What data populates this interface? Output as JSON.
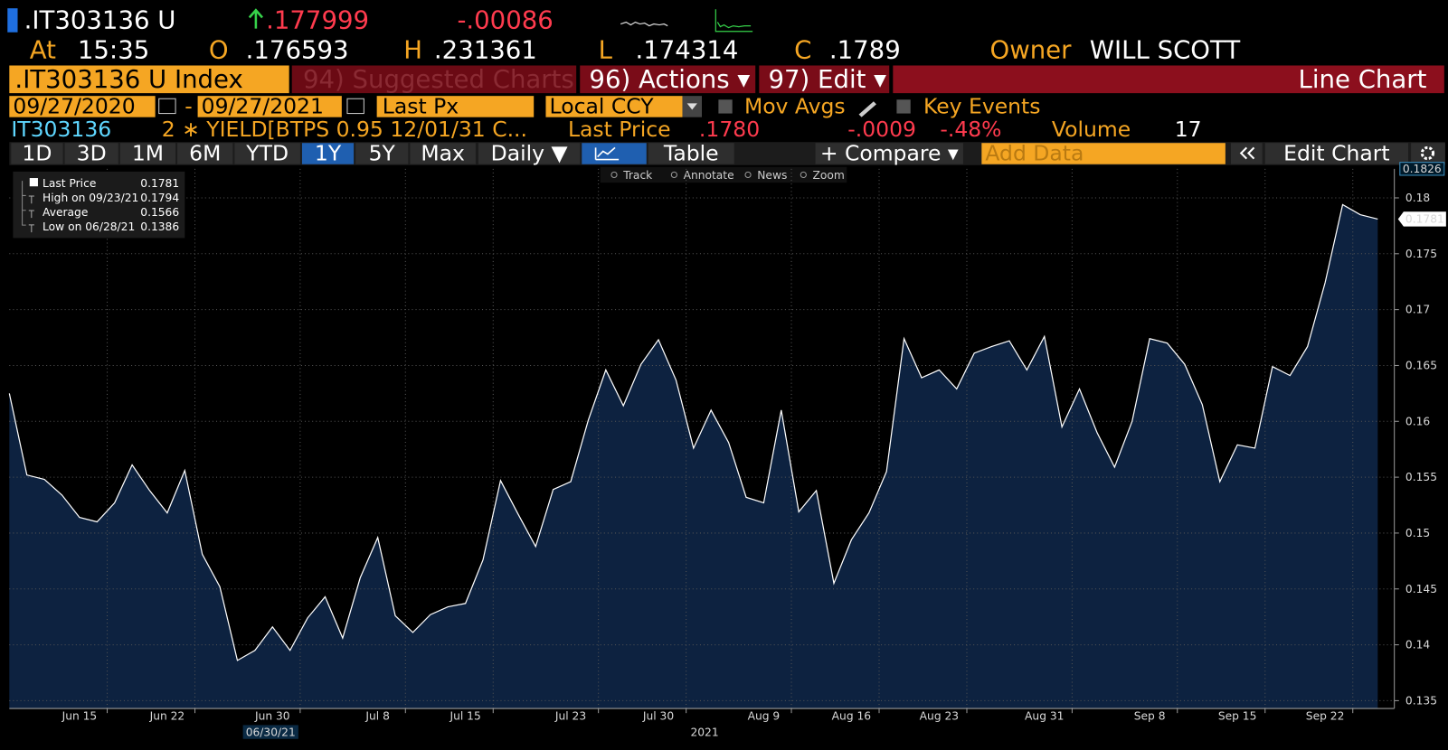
{
  "header": {
    "ticker": ".IT303136 U",
    "last": ".177999",
    "change": "-.00086",
    "at_label": "At",
    "time": "15:35",
    "open_label": "O",
    "open": ".176593",
    "high_label": "H",
    "high": ".231361",
    "low_label": "L",
    "low": ".174314",
    "close_label": "C",
    "close": ".1789",
    "owner_label": "Owner",
    "owner": "WILL SCOTT"
  },
  "menu": {
    "security": ".IT303136 U Index",
    "suggested": "94) Suggested Charts",
    "actions": "96) Actions ▾",
    "edit": "97) Edit ▾",
    "chart_type": "Line Chart"
  },
  "controls": {
    "start_date": "09/27/2020",
    "dash": "-",
    "end_date": "09/27/2021",
    "field": "Last Px",
    "currency": "Local CCY",
    "mov_avgs": "Mov Avgs",
    "key_events": "Key Events"
  },
  "quote": {
    "id": "IT303136",
    "description": "2 ∗ YIELD[BTPS 0.95 12/01/31 C...",
    "last_price_label": "Last Price",
    "last_price": ".1780",
    "change": "-.0009",
    "change_pct": "-.48%",
    "volume_label": "Volume",
    "volume": "17"
  },
  "tabs": [
    "1D",
    "3D",
    "1M",
    "6M",
    "YTD",
    "1Y",
    "5Y",
    "Max",
    "Daily ▼",
    "Table",
    "+ Compare ▾",
    "Add Data",
    "Edit Chart"
  ],
  "active_tab": "1Y",
  "tools": [
    "Track",
    "Annotate",
    "News",
    "Zoom"
  ],
  "chart_data": {
    "type": "line",
    "categories": [
      null,
      null,
      null,
      null,
      "Jun 15",
      null,
      null,
      null,
      null,
      "Jun 22",
      null,
      null,
      null,
      null,
      null,
      "Jun 30",
      null,
      null,
      null,
      null,
      null,
      "Jul 8",
      null,
      null,
      null,
      null,
      "Jul 15",
      null,
      null,
      null,
      null,
      null,
      "Jul 23",
      null,
      null,
      null,
      null,
      "Jul 30",
      null,
      null,
      null,
      null,
      null,
      "Aug 9",
      null,
      null,
      null,
      null,
      "Aug 16",
      null,
      null,
      null,
      null,
      "Aug 23",
      null,
      null,
      null,
      null,
      null,
      "Aug 31",
      null,
      null,
      null,
      null,
      null,
      "Sep 8",
      null,
      null,
      null,
      null,
      "Sep 15",
      null,
      null,
      null,
      null,
      "Sep 22",
      null,
      null,
      null
    ],
    "values": [
      0.1625,
      0.1552,
      0.1548,
      0.1534,
      0.1514,
      0.151,
      0.1527,
      0.1561,
      0.1538,
      0.1518,
      0.1556,
      0.1481,
      0.1452,
      0.1386,
      0.1395,
      0.1416,
      0.1395,
      0.1424,
      0.1443,
      0.1406,
      0.146,
      0.1496,
      0.1426,
      0.1411,
      0.1427,
      0.1434,
      0.1437,
      0.1476,
      0.1547,
      0.1517,
      0.1488,
      0.1539,
      0.1546,
      0.1601,
      0.1646,
      0.1614,
      0.1651,
      0.1673,
      0.1637,
      0.1576,
      0.161,
      0.1581,
      0.1532,
      0.1527,
      0.161,
      0.1519,
      0.1538,
      0.1455,
      0.1494,
      0.1518,
      0.1555,
      0.1674,
      0.1639,
      0.1646,
      0.1629,
      0.1661,
      0.1667,
      0.1672,
      0.1646,
      0.1676,
      0.1595,
      0.1629,
      0.159,
      0.1559,
      0.16,
      0.1674,
      0.167,
      0.1651,
      0.1615,
      0.1546,
      0.1579,
      0.1576,
      0.1649,
      0.1641,
      0.1667,
      0.1724,
      0.1794,
      0.1785,
      0.1781
    ],
    "color": "#ffffff",
    "fill_color": "#0d2240",
    "ylim": [
      0.1343,
      0.1826
    ],
    "yticks": [
      0.135,
      0.14,
      0.145,
      0.15,
      0.155,
      0.16,
      0.165,
      0.17,
      0.175,
      0.18
    ],
    "grid": true,
    "x_highlight": "06/30/21",
    "x_year": "2021",
    "legend": [
      {
        "label": "Last Price",
        "value": 0.1781
      },
      {
        "label": "High on 09/23/21",
        "value": 0.1794
      },
      {
        "label": "Average",
        "value": 0.1566
      },
      {
        "label": "Low on 06/28/21",
        "value": 0.1386
      }
    ]
  }
}
